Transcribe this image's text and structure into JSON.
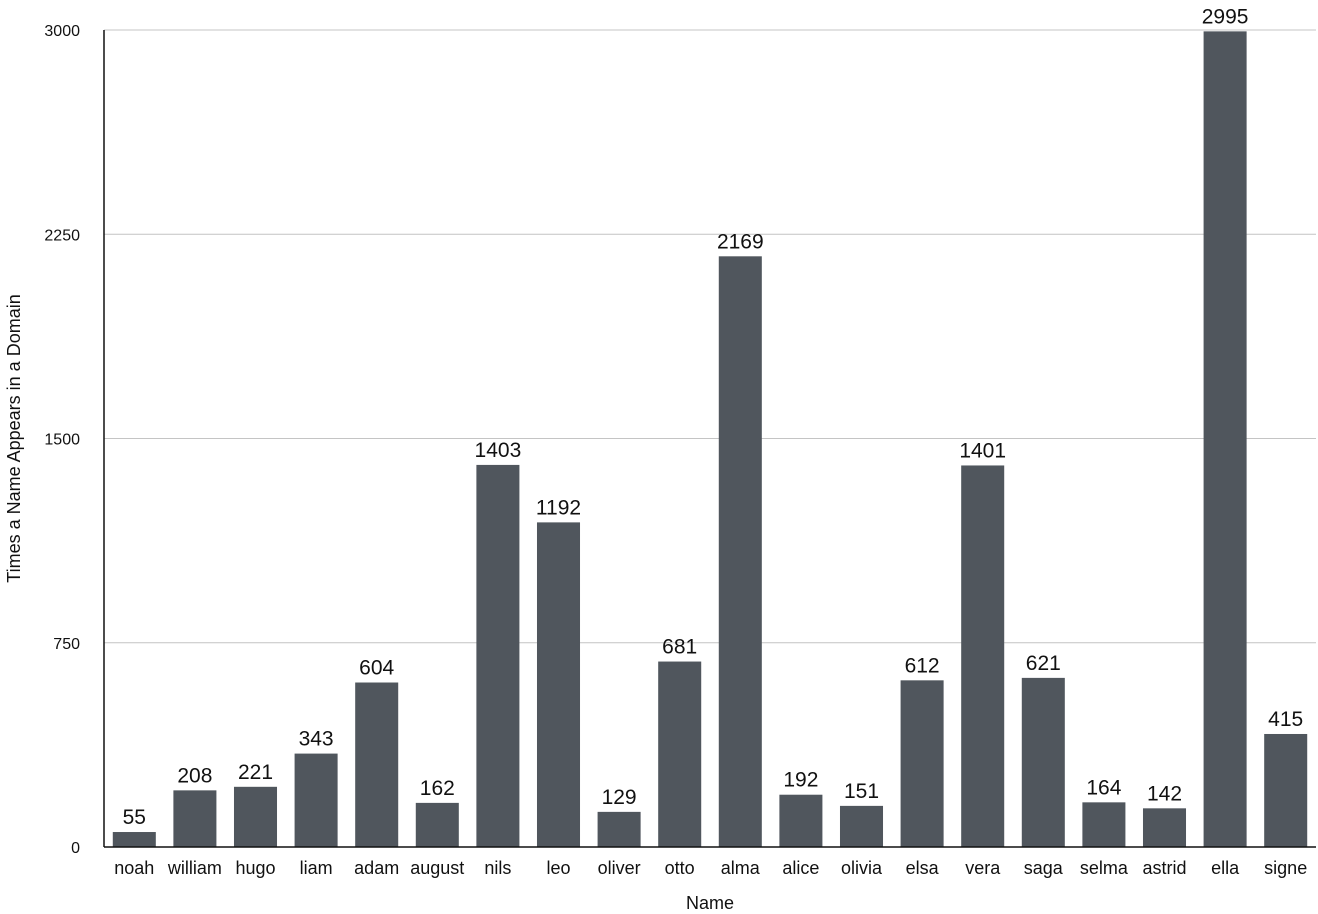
{
  "chart_data": {
    "type": "bar",
    "xlabel": "Name",
    "ylabel": "Times a Name Appears in a Domain",
    "ylim": [
      0,
      3000
    ],
    "yticks": [
      0,
      750,
      1500,
      2250,
      3000
    ],
    "grid": true,
    "categories": [
      "noah",
      "william",
      "hugo",
      "liam",
      "adam",
      "august",
      "nils",
      "leo",
      "oliver",
      "otto",
      "alma",
      "alice",
      "olivia",
      "elsa",
      "vera",
      "saga",
      "selma",
      "astrid",
      "ella",
      "signe"
    ],
    "values": [
      55,
      208,
      221,
      343,
      604,
      162,
      1403,
      1192,
      129,
      681,
      2169,
      192,
      151,
      612,
      1401,
      621,
      164,
      142,
      2995,
      415
    ],
    "colors": {
      "bar": "#50565d",
      "grid": "#c4c4c4"
    }
  }
}
